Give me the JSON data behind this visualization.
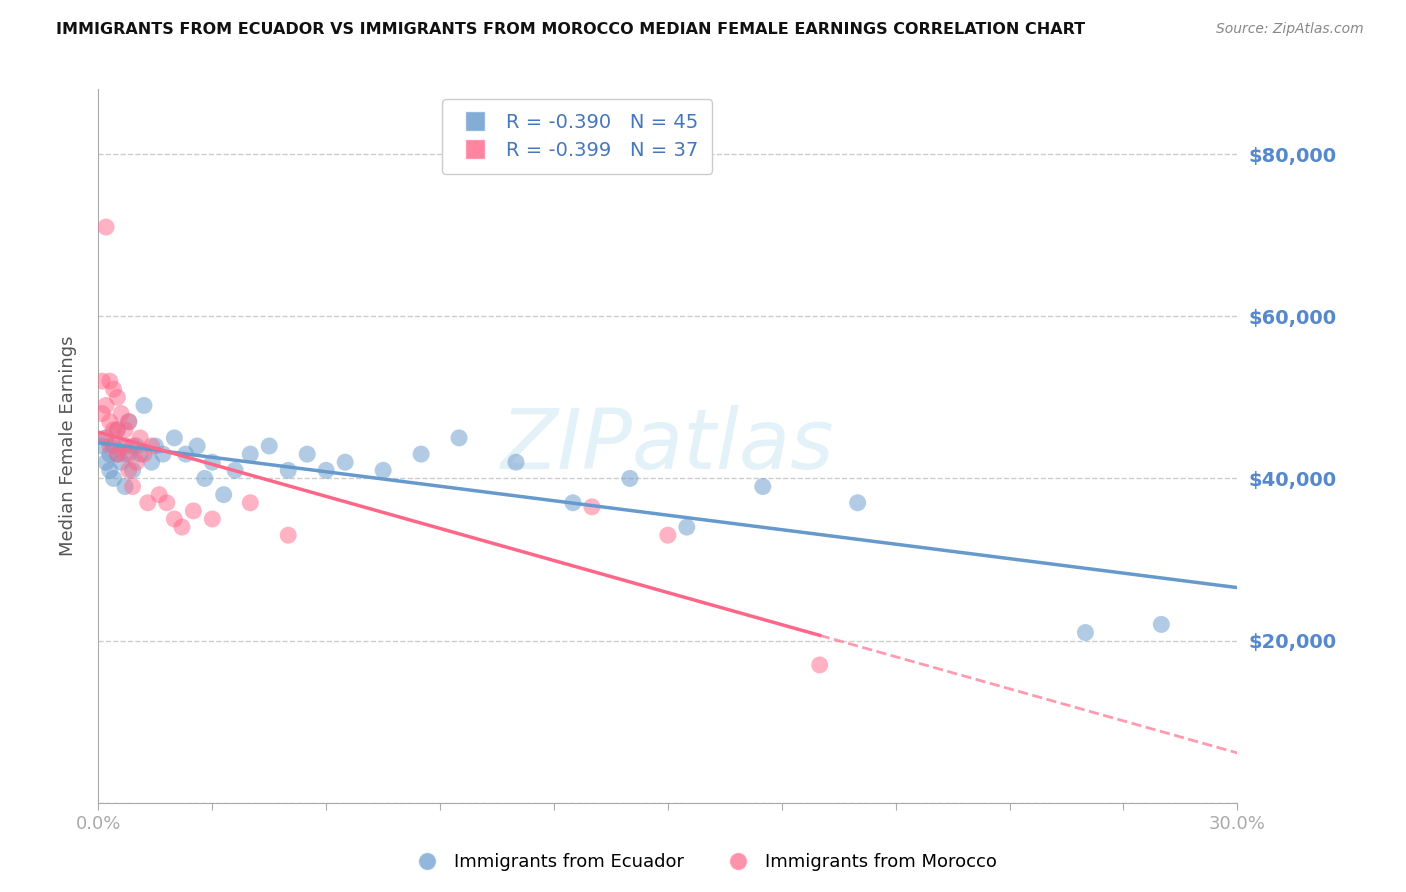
{
  "title": "IMMIGRANTS FROM ECUADOR VS IMMIGRANTS FROM MOROCCO MEDIAN FEMALE EARNINGS CORRELATION CHART",
  "source": "Source: ZipAtlas.com",
  "ylabel": "Median Female Earnings",
  "y_ticks": [
    0,
    20000,
    40000,
    60000,
    80000
  ],
  "y_tick_labels": [
    "",
    "$20,000",
    "$40,000",
    "$60,000",
    "$80,000"
  ],
  "xmin": 0.0,
  "xmax": 0.3,
  "ymin": 0,
  "ymax": 88000,
  "ecuador_color": "#6699CC",
  "morocco_color": "#FF6688",
  "ecuador_R": -0.39,
  "ecuador_N": 45,
  "morocco_R": -0.399,
  "morocco_N": 37,
  "watermark_text": "ZIPatlas",
  "background_color": "#ffffff",
  "grid_color": "#cccccc",
  "axis_label_color": "#5588CC",
  "ecuador_scatter_x": [
    0.001,
    0.002,
    0.002,
    0.003,
    0.003,
    0.004,
    0.004,
    0.005,
    0.005,
    0.006,
    0.007,
    0.007,
    0.008,
    0.008,
    0.009,
    0.01,
    0.011,
    0.012,
    0.014,
    0.015,
    0.017,
    0.02,
    0.023,
    0.026,
    0.028,
    0.03,
    0.033,
    0.036,
    0.04,
    0.045,
    0.05,
    0.055,
    0.06,
    0.065,
    0.075,
    0.085,
    0.095,
    0.11,
    0.125,
    0.14,
    0.155,
    0.175,
    0.2,
    0.26,
    0.28
  ],
  "ecuador_scatter_y": [
    44000,
    42000,
    45000,
    43000,
    41000,
    44000,
    40000,
    43000,
    46000,
    42000,
    44000,
    39000,
    43000,
    47000,
    41000,
    44000,
    43000,
    49000,
    42000,
    44000,
    43000,
    45000,
    43000,
    44000,
    40000,
    42000,
    38000,
    41000,
    43000,
    44000,
    41000,
    43000,
    41000,
    42000,
    41000,
    43000,
    45000,
    42000,
    37000,
    40000,
    34000,
    39000,
    37000,
    21000,
    22000
  ],
  "morocco_scatter_x": [
    0.001,
    0.001,
    0.002,
    0.002,
    0.002,
    0.003,
    0.003,
    0.003,
    0.004,
    0.004,
    0.005,
    0.005,
    0.005,
    0.006,
    0.006,
    0.007,
    0.007,
    0.008,
    0.008,
    0.009,
    0.009,
    0.01,
    0.011,
    0.012,
    0.013,
    0.014,
    0.016,
    0.018,
    0.02,
    0.022,
    0.025,
    0.03,
    0.04,
    0.05,
    0.13,
    0.15,
    0.19
  ],
  "morocco_scatter_y": [
    52000,
    48000,
    71000,
    49000,
    45000,
    52000,
    47000,
    44000,
    51000,
    46000,
    50000,
    46000,
    43000,
    48000,
    44000,
    46000,
    43000,
    47000,
    41000,
    44000,
    39000,
    42000,
    45000,
    43000,
    37000,
    44000,
    38000,
    37000,
    35000,
    34000,
    36000,
    35000,
    37000,
    33000,
    36500,
    33000,
    17000
  ]
}
